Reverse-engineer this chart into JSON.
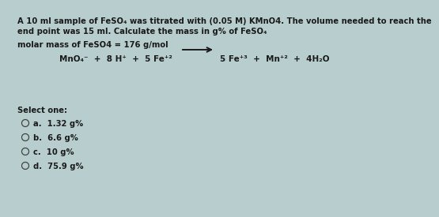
{
  "bg_color": "#b8cece",
  "text_color": "#1a1a1a",
  "title_line1": "A 10 ml sample of FeSO₄ was titrated with (0.05 M) KMnO4. The volume needed to reach the",
  "title_line2": "end point was 15 ml. Calculate the mass in g% of FeSO₄",
  "molar_mass_line": "molar mass of FeSO4 = 176 g/mol",
  "equation_left": "MnO₄⁻  +  8 H⁺  +  5 Fe⁺²",
  "equation_right": "5 Fe⁺³  +  Mn⁺²  +  4H₂O",
  "select_one": "Select one:",
  "options": [
    "a.  1.32 g%",
    "b.  6.6 g%",
    "c.  10 g%",
    "d.  75.9 g%"
  ],
  "arrow_color": "#1a1a1a",
  "circle_color": "#444444",
  "title_fontsize": 7.2,
  "molar_fontsize": 7.2,
  "eq_fontsize": 7.5,
  "select_fontsize": 7.2,
  "option_fontsize": 7.2
}
